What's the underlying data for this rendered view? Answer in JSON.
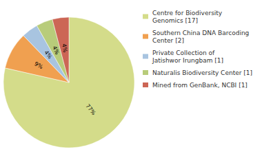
{
  "chart_data": {
    "type": "pie",
    "categories": [
      "Centre for Biodiversity\nGenomics [17]",
      "Southern China DNA Barcoding\nCenter [2]",
      "Private Collection of\nJatishwor Irungbam [1]",
      "Naturalis Biodiversity Center [1]",
      "Mined from GenBank, NCBI [1]"
    ],
    "values": [
      77,
      9,
      4,
      4,
      4
    ],
    "value_labels": [
      "77%",
      "9%",
      "4%",
      "4%",
      "4%"
    ],
    "colors": [
      "#d4dc8a",
      "#f0a050",
      "#a8c4e0",
      "#b8cc7a",
      "#cc6655"
    ],
    "data_labels": true,
    "legend": "upper right"
  }
}
